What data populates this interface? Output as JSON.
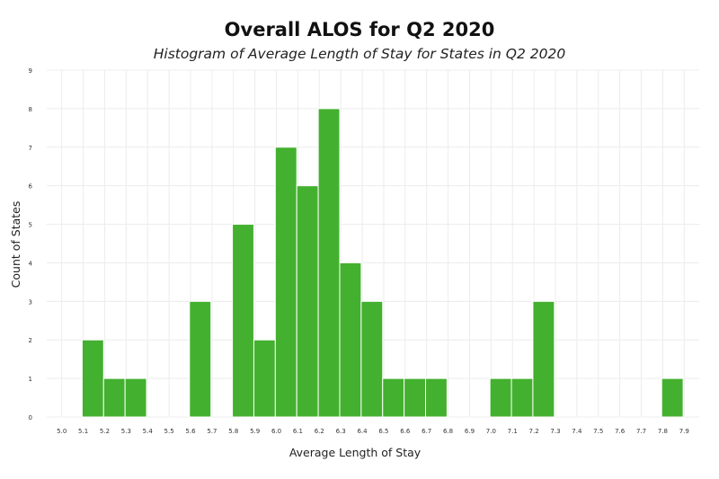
{
  "chart_data": {
    "type": "bar",
    "title": "Overall ALOS for Q2 2020",
    "subtitle": "Histogram of Average Length of Stay for States in Q2 2020",
    "xlabel": "Average Length of Stay",
    "ylabel": "Count of States",
    "x_ticks": [
      "5.0",
      "5.1",
      "5.2",
      "5.3",
      "5.4",
      "5.5",
      "5.6",
      "5.7",
      "5.8",
      "5.9",
      "6.0",
      "6.1",
      "6.2",
      "6.3",
      "6.4",
      "6.5",
      "6.6",
      "6.7",
      "6.8",
      "6.9",
      "7.0",
      "7.1",
      "7.2",
      "7.3",
      "7.4",
      "7.5",
      "7.6",
      "7.7",
      "7.8",
      "7.9"
    ],
    "y_ticks": [
      "0",
      "1",
      "2",
      "3",
      "4",
      "5",
      "6",
      "7",
      "8",
      "9"
    ],
    "xlim": [
      4.93,
      7.97
    ],
    "ylim": [
      0,
      9
    ],
    "bin_width": 0.1,
    "bins": [
      {
        "label": "5.1",
        "value": 2
      },
      {
        "label": "5.2",
        "value": 1
      },
      {
        "label": "5.3",
        "value": 1
      },
      {
        "label": "5.6",
        "value": 3
      },
      {
        "label": "5.8",
        "value": 5
      },
      {
        "label": "5.9",
        "value": 2
      },
      {
        "label": "6.0",
        "value": 7
      },
      {
        "label": "6.1",
        "value": 6
      },
      {
        "label": "6.2",
        "value": 8
      },
      {
        "label": "6.3",
        "value": 4
      },
      {
        "label": "6.4",
        "value": 3
      },
      {
        "label": "6.5",
        "value": 1
      },
      {
        "label": "6.6",
        "value": 1
      },
      {
        "label": "6.7",
        "value": 1
      },
      {
        "label": "7.0",
        "value": 1
      },
      {
        "label": "7.1",
        "value": 1
      },
      {
        "label": "7.2",
        "value": 3
      },
      {
        "label": "7.8",
        "value": 1
      }
    ],
    "bar_color": "#44b02f",
    "grid": true,
    "legend": "none"
  }
}
